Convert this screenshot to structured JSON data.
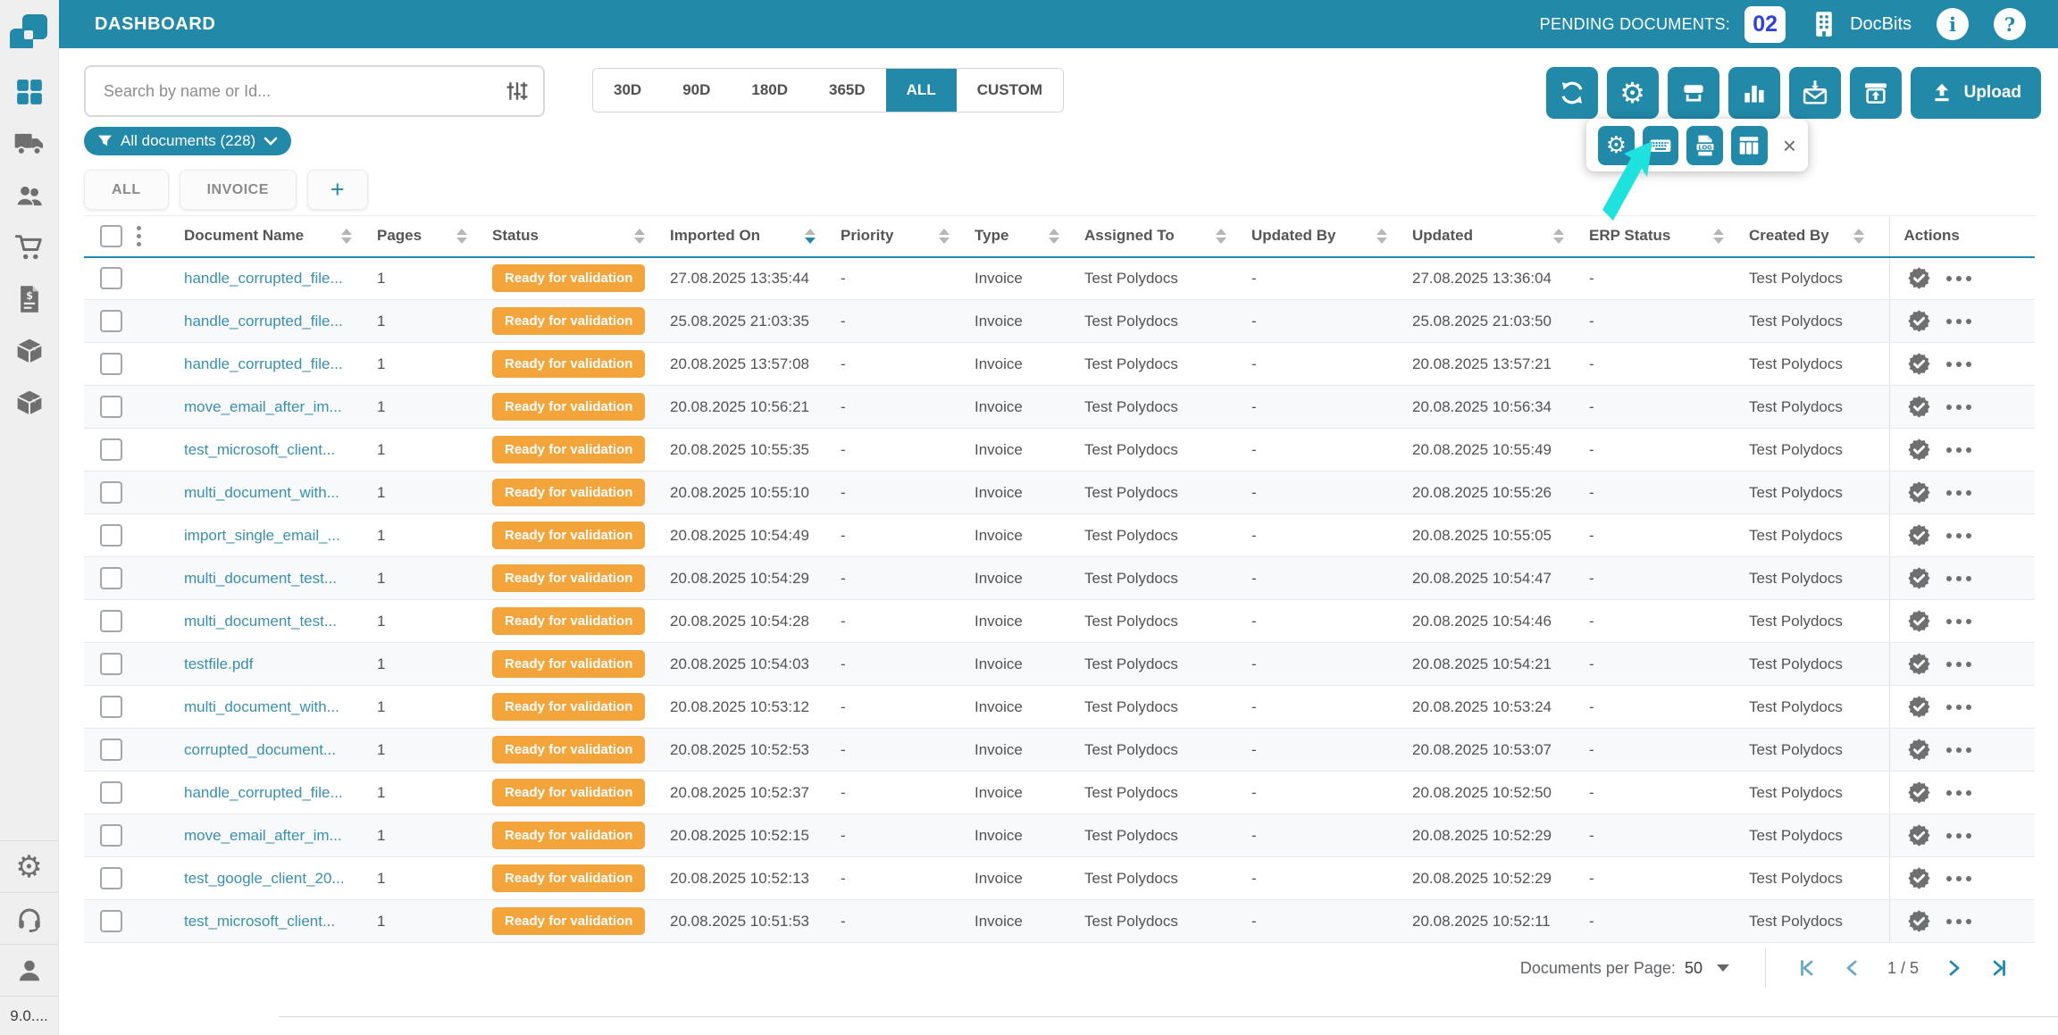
{
  "header": {
    "title": "DASHBOARD",
    "pending_label": "PENDING DOCUMENTS:",
    "pending_count": "02",
    "org_name": "DocBits",
    "icons": [
      "building-icon",
      "info-icon",
      "help-icon"
    ]
  },
  "sidebar": {
    "top_icons": [
      "dashboard-grid",
      "truck",
      "users",
      "cart",
      "invoice-doc",
      "package",
      "package"
    ],
    "bottom_icons": [
      "settings-gear",
      "support-headset",
      "user-profile"
    ],
    "version": "9.0...."
  },
  "controls": {
    "search_placeholder": "Search by name or Id...",
    "search_icon": "tune-filter-icon",
    "date_filters": [
      "30D",
      "90D",
      "180D",
      "365D",
      "ALL",
      "CUSTOM"
    ],
    "active_filter": "ALL",
    "filter_chip_label": "All documents (228)",
    "tabs": [
      "ALL",
      "INVOICE"
    ],
    "add_tab_label": "+",
    "toolbar_icons": [
      "sync-icon",
      "gear-icon",
      "scanner-icon",
      "bar-chart-icon",
      "mail-import-icon",
      "export-box-icon"
    ],
    "upload_label": "Upload",
    "popup_icons": [
      "gear-icon",
      "keyboard-icon",
      "log-file-icon",
      "table-columns-icon"
    ],
    "popup_close": "×"
  },
  "table": {
    "columns": [
      {
        "label": "Document Name",
        "sortable": true,
        "sorted": null
      },
      {
        "label": "Pages",
        "sortable": true,
        "sorted": null
      },
      {
        "label": "Status",
        "sortable": true,
        "sorted": null
      },
      {
        "label": "Imported On",
        "sortable": true,
        "sorted": "desc"
      },
      {
        "label": "Priority",
        "sortable": true,
        "sorted": null
      },
      {
        "label": "Type",
        "sortable": true,
        "sorted": null
      },
      {
        "label": "Assigned To",
        "sortable": true,
        "sorted": null
      },
      {
        "label": "Updated By",
        "sortable": true,
        "sorted": null
      },
      {
        "label": "Updated",
        "sortable": true,
        "sorted": null
      },
      {
        "label": "ERP Status",
        "sortable": true,
        "sorted": null
      },
      {
        "label": "Created By",
        "sortable": true,
        "sorted": null
      },
      {
        "label": "Actions",
        "sortable": false,
        "sorted": null
      }
    ],
    "rows": [
      {
        "name": "handle_corrupted_file...",
        "pages": "1",
        "status": "Ready for validation",
        "imported_on": "27.08.2025 13:35:44",
        "priority": "-",
        "type": "Invoice",
        "assigned_to": "Test Polydocs",
        "updated_by": "-",
        "updated": "27.08.2025 13:36:04",
        "erp_status": "-",
        "created_by": "Test Polydocs"
      },
      {
        "name": "handle_corrupted_file...",
        "pages": "1",
        "status": "Ready for validation",
        "imported_on": "25.08.2025 21:03:35",
        "priority": "-",
        "type": "Invoice",
        "assigned_to": "Test Polydocs",
        "updated_by": "-",
        "updated": "25.08.2025 21:03:50",
        "erp_status": "-",
        "created_by": "Test Polydocs"
      },
      {
        "name": "handle_corrupted_file...",
        "pages": "1",
        "status": "Ready for validation",
        "imported_on": "20.08.2025 13:57:08",
        "priority": "-",
        "type": "Invoice",
        "assigned_to": "Test Polydocs",
        "updated_by": "-",
        "updated": "20.08.2025 13:57:21",
        "erp_status": "-",
        "created_by": "Test Polydocs"
      },
      {
        "name": "move_email_after_im...",
        "pages": "1",
        "status": "Ready for validation",
        "imported_on": "20.08.2025 10:56:21",
        "priority": "-",
        "type": "Invoice",
        "assigned_to": "Test Polydocs",
        "updated_by": "-",
        "updated": "20.08.2025 10:56:34",
        "erp_status": "-",
        "created_by": "Test Polydocs"
      },
      {
        "name": "test_microsoft_client...",
        "pages": "1",
        "status": "Ready for validation",
        "imported_on": "20.08.2025 10:55:35",
        "priority": "-",
        "type": "Invoice",
        "assigned_to": "Test Polydocs",
        "updated_by": "-",
        "updated": "20.08.2025 10:55:49",
        "erp_status": "-",
        "created_by": "Test Polydocs"
      },
      {
        "name": "multi_document_with...",
        "pages": "1",
        "status": "Ready for validation",
        "imported_on": "20.08.2025 10:55:10",
        "priority": "-",
        "type": "Invoice",
        "assigned_to": "Test Polydocs",
        "updated_by": "-",
        "updated": "20.08.2025 10:55:26",
        "erp_status": "-",
        "created_by": "Test Polydocs"
      },
      {
        "name": "import_single_email_...",
        "pages": "1",
        "status": "Ready for validation",
        "imported_on": "20.08.2025 10:54:49",
        "priority": "-",
        "type": "Invoice",
        "assigned_to": "Test Polydocs",
        "updated_by": "-",
        "updated": "20.08.2025 10:55:05",
        "erp_status": "-",
        "created_by": "Test Polydocs"
      },
      {
        "name": "multi_document_test...",
        "pages": "1",
        "status": "Ready for validation",
        "imported_on": "20.08.2025 10:54:29",
        "priority": "-",
        "type": "Invoice",
        "assigned_to": "Test Polydocs",
        "updated_by": "-",
        "updated": "20.08.2025 10:54:47",
        "erp_status": "-",
        "created_by": "Test Polydocs"
      },
      {
        "name": "multi_document_test...",
        "pages": "1",
        "status": "Ready for validation",
        "imported_on": "20.08.2025 10:54:28",
        "priority": "-",
        "type": "Invoice",
        "assigned_to": "Test Polydocs",
        "updated_by": "-",
        "updated": "20.08.2025 10:54:46",
        "erp_status": "-",
        "created_by": "Test Polydocs"
      },
      {
        "name": "testfile.pdf",
        "pages": "1",
        "status": "Ready for validation",
        "imported_on": "20.08.2025 10:54:03",
        "priority": "-",
        "type": "Invoice",
        "assigned_to": "Test Polydocs",
        "updated_by": "-",
        "updated": "20.08.2025 10:54:21",
        "erp_status": "-",
        "created_by": "Test Polydocs"
      },
      {
        "name": "multi_document_with...",
        "pages": "1",
        "status": "Ready for validation",
        "imported_on": "20.08.2025 10:53:12",
        "priority": "-",
        "type": "Invoice",
        "assigned_to": "Test Polydocs",
        "updated_by": "-",
        "updated": "20.08.2025 10:53:24",
        "erp_status": "-",
        "created_by": "Test Polydocs"
      },
      {
        "name": "corrupted_document...",
        "pages": "1",
        "status": "Ready for validation",
        "imported_on": "20.08.2025 10:52:53",
        "priority": "-",
        "type": "Invoice",
        "assigned_to": "Test Polydocs",
        "updated_by": "-",
        "updated": "20.08.2025 10:53:07",
        "erp_status": "-",
        "created_by": "Test Polydocs"
      },
      {
        "name": "handle_corrupted_file...",
        "pages": "1",
        "status": "Ready for validation",
        "imported_on": "20.08.2025 10:52:37",
        "priority": "-",
        "type": "Invoice",
        "assigned_to": "Test Polydocs",
        "updated_by": "-",
        "updated": "20.08.2025 10:52:50",
        "erp_status": "-",
        "created_by": "Test Polydocs"
      },
      {
        "name": "move_email_after_im...",
        "pages": "1",
        "status": "Ready for validation",
        "imported_on": "20.08.2025 10:52:15",
        "priority": "-",
        "type": "Invoice",
        "assigned_to": "Test Polydocs",
        "updated_by": "-",
        "updated": "20.08.2025 10:52:29",
        "erp_status": "-",
        "created_by": "Test Polydocs"
      },
      {
        "name": "test_google_client_20...",
        "pages": "1",
        "status": "Ready for validation",
        "imported_on": "20.08.2025 10:52:13",
        "priority": "-",
        "type": "Invoice",
        "assigned_to": "Test Polydocs",
        "updated_by": "-",
        "updated": "20.08.2025 10:52:29",
        "erp_status": "-",
        "created_by": "Test Polydocs"
      },
      {
        "name": "test_microsoft_client...",
        "pages": "1",
        "status": "Ready for validation",
        "imported_on": "20.08.2025 10:51:53",
        "priority": "-",
        "type": "Invoice",
        "assigned_to": "Test Polydocs",
        "updated_by": "-",
        "updated": "20.08.2025 10:52:11",
        "erp_status": "-",
        "created_by": "Test Polydocs"
      }
    ]
  },
  "pagination": {
    "per_page_label": "Documents per Page:",
    "per_page_value": "50",
    "page_indicator": "1 / 5"
  },
  "colors": {
    "accent_teal": "#2289a9",
    "badge_orange": "#f3a43b",
    "count_blue": "#2e41d8",
    "arrow_cyan": "#1fe2de",
    "link_teal": "#3a8fae"
  }
}
